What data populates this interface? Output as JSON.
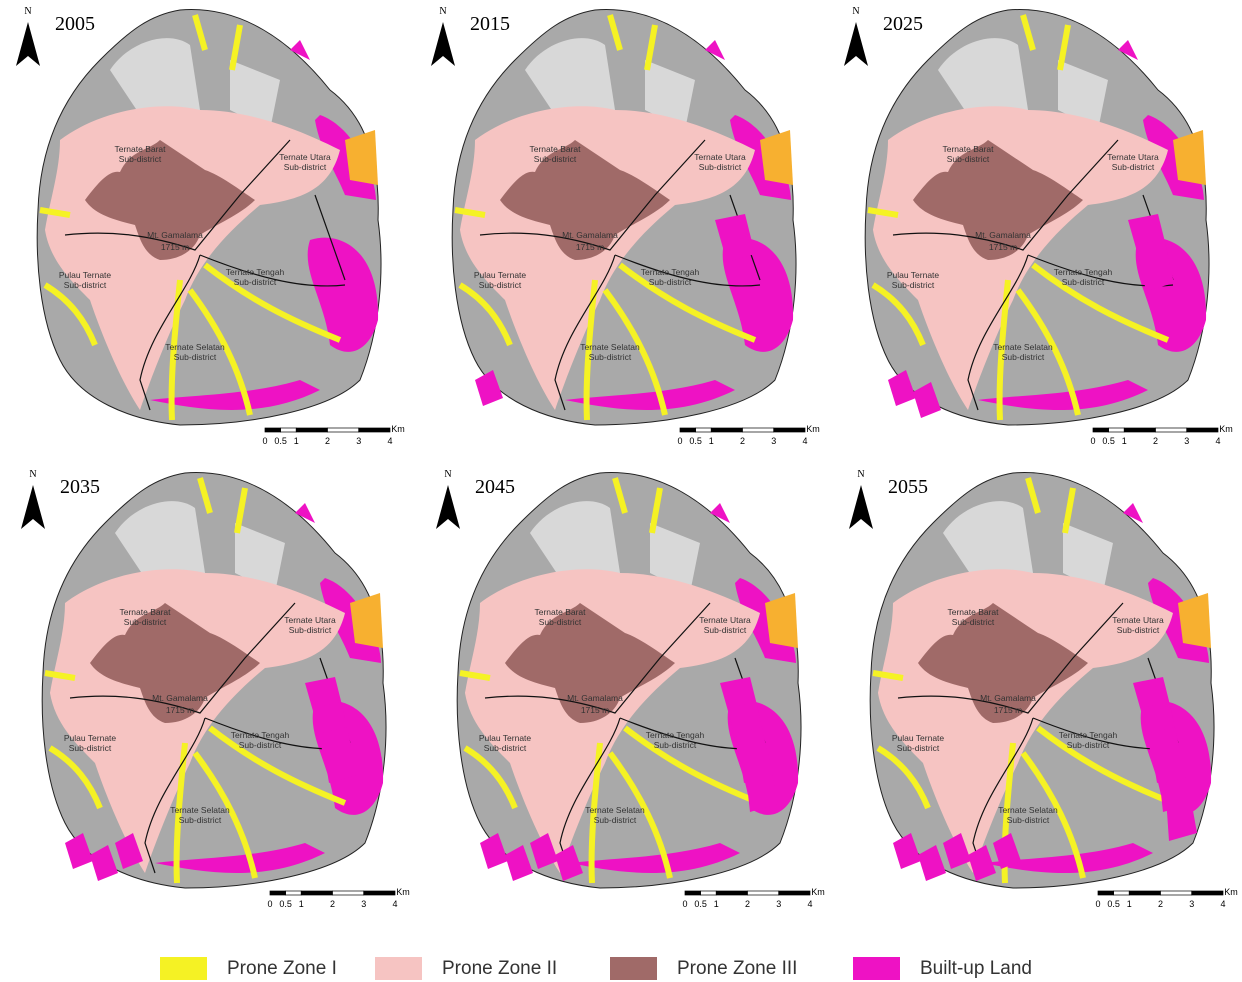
{
  "panels": [
    {
      "year": "2005"
    },
    {
      "year": "2015"
    },
    {
      "year": "2025"
    },
    {
      "year": "2035"
    },
    {
      "year": "2045"
    },
    {
      "year": "2055"
    }
  ],
  "north_label": "N",
  "place_labels": [
    {
      "name": "Ternate Barat",
      "sub": "Sub-district"
    },
    {
      "name": "Ternate Utara",
      "sub": "Sub-district"
    },
    {
      "name": "Pulau Ternate",
      "sub": "Sub-district"
    },
    {
      "name": "Ternate Tengah",
      "sub": "Sub-district"
    },
    {
      "name": "Ternate Selatan",
      "sub": "Sub-district"
    }
  ],
  "peak": {
    "name": "Mt. Gamalama",
    "elevation": "1715 m"
  },
  "scale": {
    "ticks": [
      0,
      0.5,
      1,
      2,
      3,
      4
    ],
    "unit": "Km"
  },
  "legend": [
    {
      "label": "Prone Zone I",
      "color": "#f5f224"
    },
    {
      "label": "Prone Zone II",
      "color": "#f6c4c2"
    },
    {
      "label": "Prone Zone III",
      "color": "#a06a68"
    },
    {
      "label": "Built-up Land",
      "color": "#ee12c4"
    }
  ]
}
